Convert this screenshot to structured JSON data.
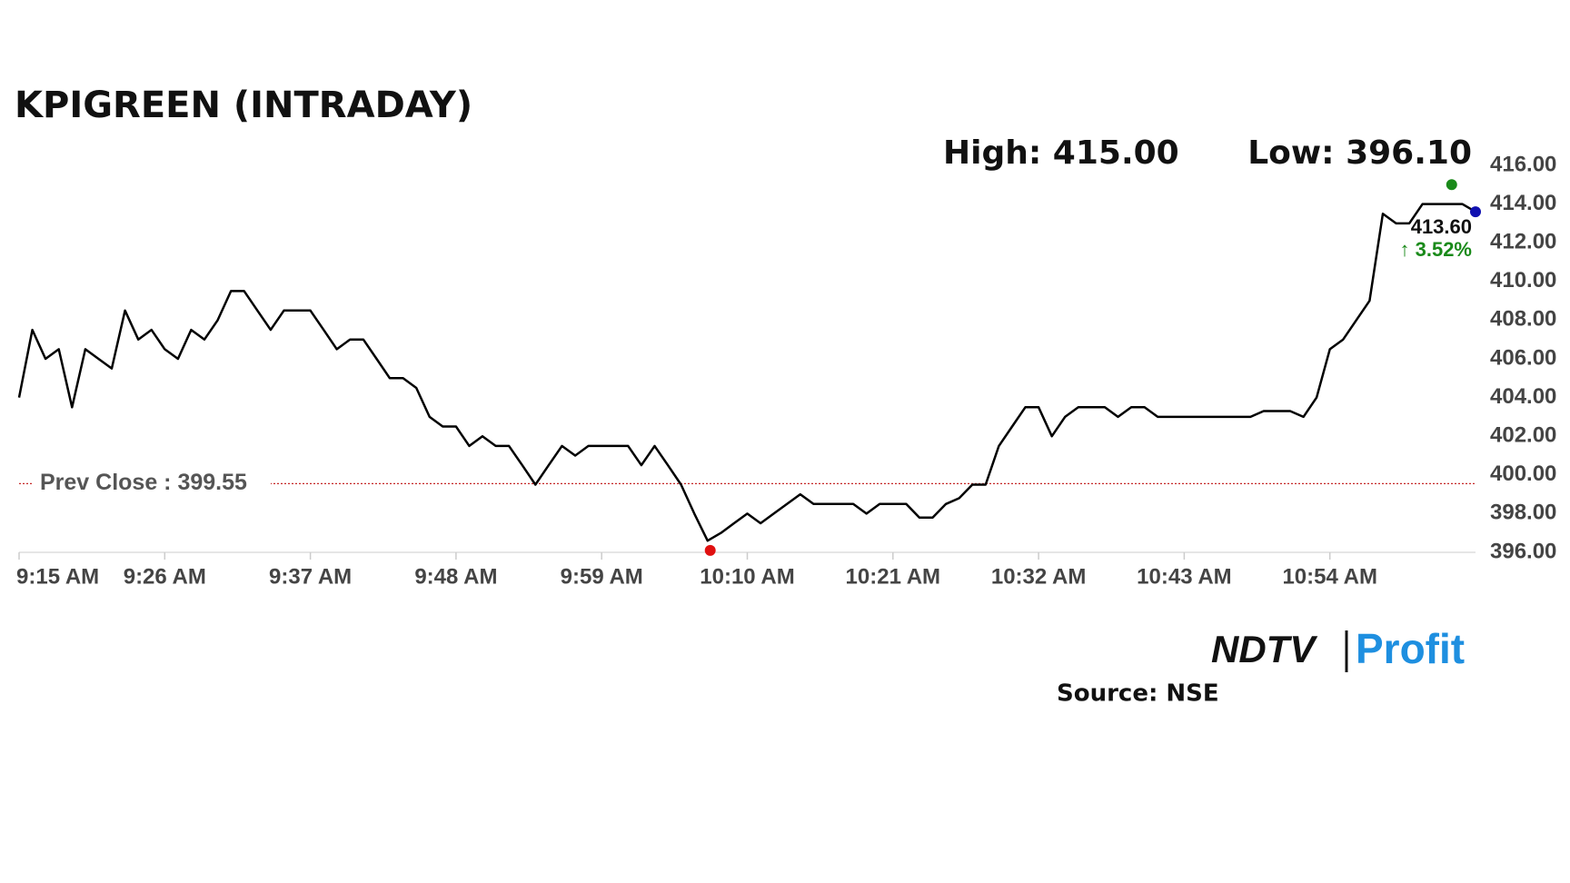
{
  "chart_data": {
    "type": "line",
    "title": "KPIGREEN (INTRADAY)",
    "high_label": "High: 415.00",
    "low_label": "Low: 396.10",
    "prev_close_label": "Prev Close : 399.55",
    "prev_close": 399.55,
    "last_label": "413.60",
    "change_label": "↑ 3.52%",
    "source": "Source: NSE",
    "logo": [
      "NDTV",
      "Profit"
    ],
    "high_point": {
      "x": 108.2,
      "value": 415
    },
    "low_point": {
      "x": 52.2,
      "value": 396.1
    },
    "last_point": {
      "x": 110,
      "value": 413.6
    },
    "x": [
      0,
      1,
      2,
      3,
      4,
      5,
      6,
      7,
      8,
      9,
      10,
      11,
      12,
      13,
      14,
      15,
      16,
      17,
      18,
      19,
      20,
      21,
      22,
      23,
      24,
      25,
      26,
      27,
      28,
      29,
      30,
      31,
      32,
      33,
      34,
      35,
      36,
      37,
      38,
      39,
      40,
      41,
      42,
      43,
      44,
      45,
      46,
      47,
      48,
      49,
      50,
      51,
      52,
      53,
      54,
      55,
      56,
      57,
      58,
      59,
      60,
      61,
      62,
      63,
      64,
      65,
      66,
      67,
      68,
      69,
      70,
      71,
      72,
      73,
      74,
      75,
      76,
      77,
      78,
      79,
      80,
      81,
      82,
      83,
      84,
      85,
      86,
      87,
      88,
      89,
      90,
      91,
      92,
      93,
      94,
      95,
      96,
      97,
      98,
      99,
      100,
      101,
      102,
      103,
      104,
      105,
      106,
      107,
      108,
      109,
      110
    ],
    "series": [
      {
        "name": "KPIGREEN",
        "color": "#000000",
        "values": [
          404,
          407.5,
          406,
          406.5,
          403.5,
          406.5,
          406,
          405.5,
          408.5,
          407,
          407.5,
          406.5,
          406,
          407.5,
          407,
          408,
          409.5,
          409.5,
          408.5,
          407.5,
          408.5,
          408.5,
          408.5,
          407.5,
          406.5,
          407,
          407,
          406,
          405,
          405,
          404.5,
          403,
          402.5,
          402.5,
          401.5,
          402,
          401.5,
          401.5,
          400.5,
          399.5,
          400.5,
          401.5,
          401,
          401.5,
          401.5,
          401.5,
          401.5,
          400.5,
          401.5,
          400.5,
          399.5,
          398,
          396.6,
          397,
          397.5,
          398,
          397.5,
          398,
          398.5,
          399,
          398.5,
          398.5,
          398.5,
          398.5,
          398,
          398.5,
          398.5,
          398.5,
          397.8,
          397.8,
          398.5,
          398.8,
          399.5,
          399.5,
          401.5,
          402.5,
          403.5,
          403.5,
          402,
          403,
          403.5,
          403.5,
          403.5,
          403,
          403.5,
          403.5,
          403,
          403,
          403,
          403,
          403,
          403,
          403,
          403,
          403.3,
          403.3,
          403.3,
          403,
          404,
          406.5,
          407,
          408,
          409,
          413.5,
          413,
          413,
          414,
          414,
          414,
          414,
          413.6
        ]
      }
    ],
    "xlim": [
      0,
      110
    ],
    "xticks": [
      {
        "value": 0,
        "label": "9:15 AM"
      },
      {
        "value": 11,
        "label": "9:26 AM"
      },
      {
        "value": 22,
        "label": "9:37 AM"
      },
      {
        "value": 33,
        "label": "9:48 AM"
      },
      {
        "value": 44,
        "label": "9:59 AM"
      },
      {
        "value": 55,
        "label": "10:10 AM"
      },
      {
        "value": 66,
        "label": "10:21 AM"
      },
      {
        "value": 77,
        "label": "10:32 AM"
      },
      {
        "value": 88,
        "label": "10:43 AM"
      },
      {
        "value": 99,
        "label": "10:54 AM"
      }
    ],
    "ylim": [
      396,
      416
    ],
    "yticks": [
      {
        "value": 396,
        "label": "396.00"
      },
      {
        "value": 398,
        "label": "398.00"
      },
      {
        "value": 400,
        "label": "400.00"
      },
      {
        "value": 402,
        "label": "402.00"
      },
      {
        "value": 404,
        "label": "404.00"
      },
      {
        "value": 406,
        "label": "406.00"
      },
      {
        "value": 408,
        "label": "408.00"
      },
      {
        "value": 410,
        "label": "410.00"
      },
      {
        "value": 412,
        "label": "412.00"
      },
      {
        "value": 414,
        "label": "414.00"
      },
      {
        "value": 416,
        "label": "416.00"
      }
    ],
    "grid": false
  }
}
